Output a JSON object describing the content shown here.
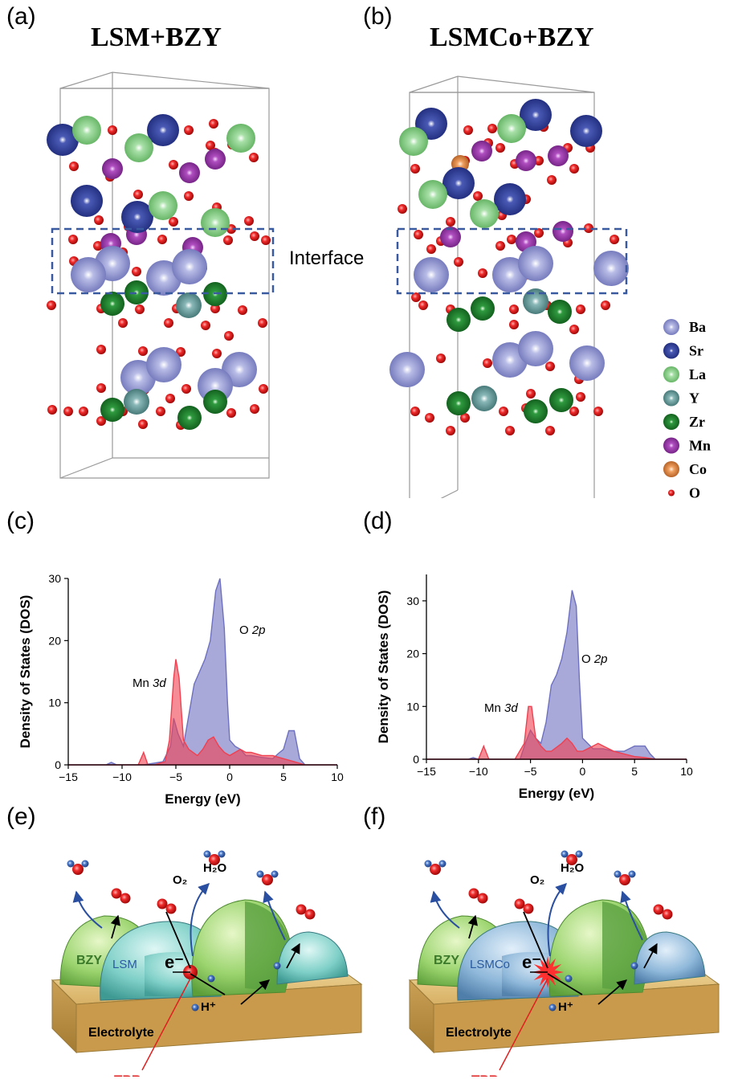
{
  "panels": {
    "a": {
      "label": "(a)",
      "title": "LSM+BZY"
    },
    "b": {
      "label": "(b)",
      "title": "LSMCo+BZY"
    },
    "c": {
      "label": "(c)"
    },
    "d": {
      "label": "(d)"
    },
    "e": {
      "label": "(e)"
    },
    "f": {
      "label": "(f)"
    }
  },
  "interface_label": "Interface",
  "legend": [
    {
      "symbol": "Ba",
      "color": "#8a8fcf"
    },
    {
      "symbol": "Sr",
      "color": "#2b3b94"
    },
    {
      "symbol": "La",
      "color": "#8fd08f"
    },
    {
      "symbol": "Y",
      "color": "#5f9595"
    },
    {
      "symbol": "Zr",
      "color": "#1c7a2a"
    },
    {
      "symbol": "Mn",
      "color": "#9a3aaa"
    },
    {
      "symbol": "Co",
      "color": "#e0864a"
    },
    {
      "symbol": "O",
      "color": "#e02020"
    }
  ],
  "chart_data": [
    {
      "type": "area",
      "panel": "c",
      "xlabel": "Energy (eV)",
      "ylabel": "Density of States (DOS)",
      "xlim": [
        -15,
        10
      ],
      "ylim": [
        0,
        30
      ],
      "xticks": [
        "-15",
        "-10",
        "-5",
        "0",
        "5",
        "10"
      ],
      "yticks": [
        "0",
        "10",
        "20",
        "30"
      ],
      "series": [
        {
          "name": "O 2p",
          "label_plain": "O",
          "label_italic": "2p",
          "color": "#6e70c0",
          "x": [
            -15,
            -11.5,
            -11,
            -10.5,
            -8,
            -6.2,
            -5.5,
            -5.2,
            -4.8,
            -4.3,
            -3.8,
            -3.3,
            -2.8,
            -2.3,
            -1.8,
            -1.3,
            -0.9,
            -0.5,
            -0.2,
            0,
            0.5,
            1,
            1.5,
            2,
            3,
            4,
            4.5,
            5,
            5.5,
            6,
            6.5,
            7,
            10
          ],
          "y": [
            0,
            0,
            0.4,
            0,
            0,
            0.5,
            3,
            7.5,
            5,
            3,
            8,
            13,
            15,
            17,
            20,
            28,
            30,
            22,
            10,
            4,
            3,
            2.5,
            1.5,
            1.5,
            1.2,
            1,
            1.8,
            2.5,
            5.5,
            5.5,
            1,
            0,
            0
          ]
        },
        {
          "name": "Mn 3d",
          "label_plain": "Mn",
          "label_italic": "3d",
          "color": "#f04050",
          "x": [
            -15,
            -8.5,
            -8,
            -7.6,
            -7,
            -6,
            -5.6,
            -5.2,
            -5,
            -4.7,
            -4.3,
            -3.8,
            -3,
            -2.5,
            -2,
            -1.5,
            -1,
            -0.5,
            0,
            0.5,
            1,
            1.5,
            2,
            3,
            4,
            5,
            6,
            7,
            10
          ],
          "y": [
            0,
            0,
            2,
            0,
            0,
            0.5,
            4,
            14,
            17,
            14,
            4,
            2.5,
            1.5,
            2.5,
            4,
            4.5,
            3,
            2,
            1.5,
            2,
            2.5,
            2,
            2,
            1.5,
            1.5,
            1,
            0.5,
            0,
            0
          ]
        }
      ]
    },
    {
      "type": "area",
      "panel": "d",
      "xlabel": "Energy (eV)",
      "ylabel": "Density of States (DOS)",
      "xlim": [
        -15,
        10
      ],
      "ylim": [
        0,
        35
      ],
      "xticks": [
        "-15",
        "-10",
        "-5",
        "0",
        "5",
        "10"
      ],
      "yticks": [
        "0",
        "10",
        "20",
        "30"
      ],
      "series": [
        {
          "name": "O 2p",
          "label_plain": "O",
          "label_italic": "2p",
          "color": "#6e70c0",
          "x": [
            -15,
            -11,
            -10.5,
            -10,
            -6,
            -5.5,
            -5,
            -4.5,
            -4,
            -3.5,
            -3,
            -2.5,
            -2,
            -1.5,
            -1,
            -0.6,
            -0.3,
            0,
            1,
            2,
            3,
            4,
            5,
            6,
            6.5,
            7,
            10
          ],
          "y": [
            0,
            0,
            0.3,
            0,
            0,
            3,
            5.5,
            4,
            3,
            7,
            14,
            16,
            19,
            24,
            32,
            29,
            15,
            4,
            2,
            2,
            1.5,
            1.5,
            2.5,
            2.5,
            1,
            0,
            0
          ]
        },
        {
          "name": "Mn 3d",
          "label_plain": "Mn",
          "label_italic": "3d",
          "color": "#f04050",
          "x": [
            -15,
            -10,
            -9.5,
            -9,
            -6.5,
            -5.6,
            -5.2,
            -4.9,
            -4.5,
            -4,
            -3.5,
            -3,
            -2,
            -1.5,
            -1,
            -0.5,
            0,
            0.5,
            1,
            1.5,
            2,
            3,
            4,
            5,
            6,
            7,
            10
          ],
          "y": [
            0,
            0,
            2.5,
            0,
            0,
            3,
            10,
            10,
            4,
            2.5,
            1.5,
            1.5,
            3,
            4,
            3,
            1.5,
            1.5,
            2,
            2.5,
            3,
            2.5,
            1.5,
            1,
            0.5,
            0.3,
            0,
            0
          ]
        }
      ]
    }
  ],
  "schematics": {
    "e": {
      "bzy": "BZY",
      "cathode": "LSM",
      "electrolyte": "Electrolyte",
      "tpb": "TPB",
      "o2": "O₂",
      "h2o": "H₂O",
      "electron": "e⁻",
      "proton": "H⁺"
    },
    "f": {
      "bzy": "BZY",
      "cathode": "LSMCo",
      "electrolyte": "Electrolyte",
      "tpb": "TPB",
      "o2": "O₂",
      "h2o": "H₂O",
      "electron": "e⁻",
      "proton": "H⁺"
    }
  }
}
